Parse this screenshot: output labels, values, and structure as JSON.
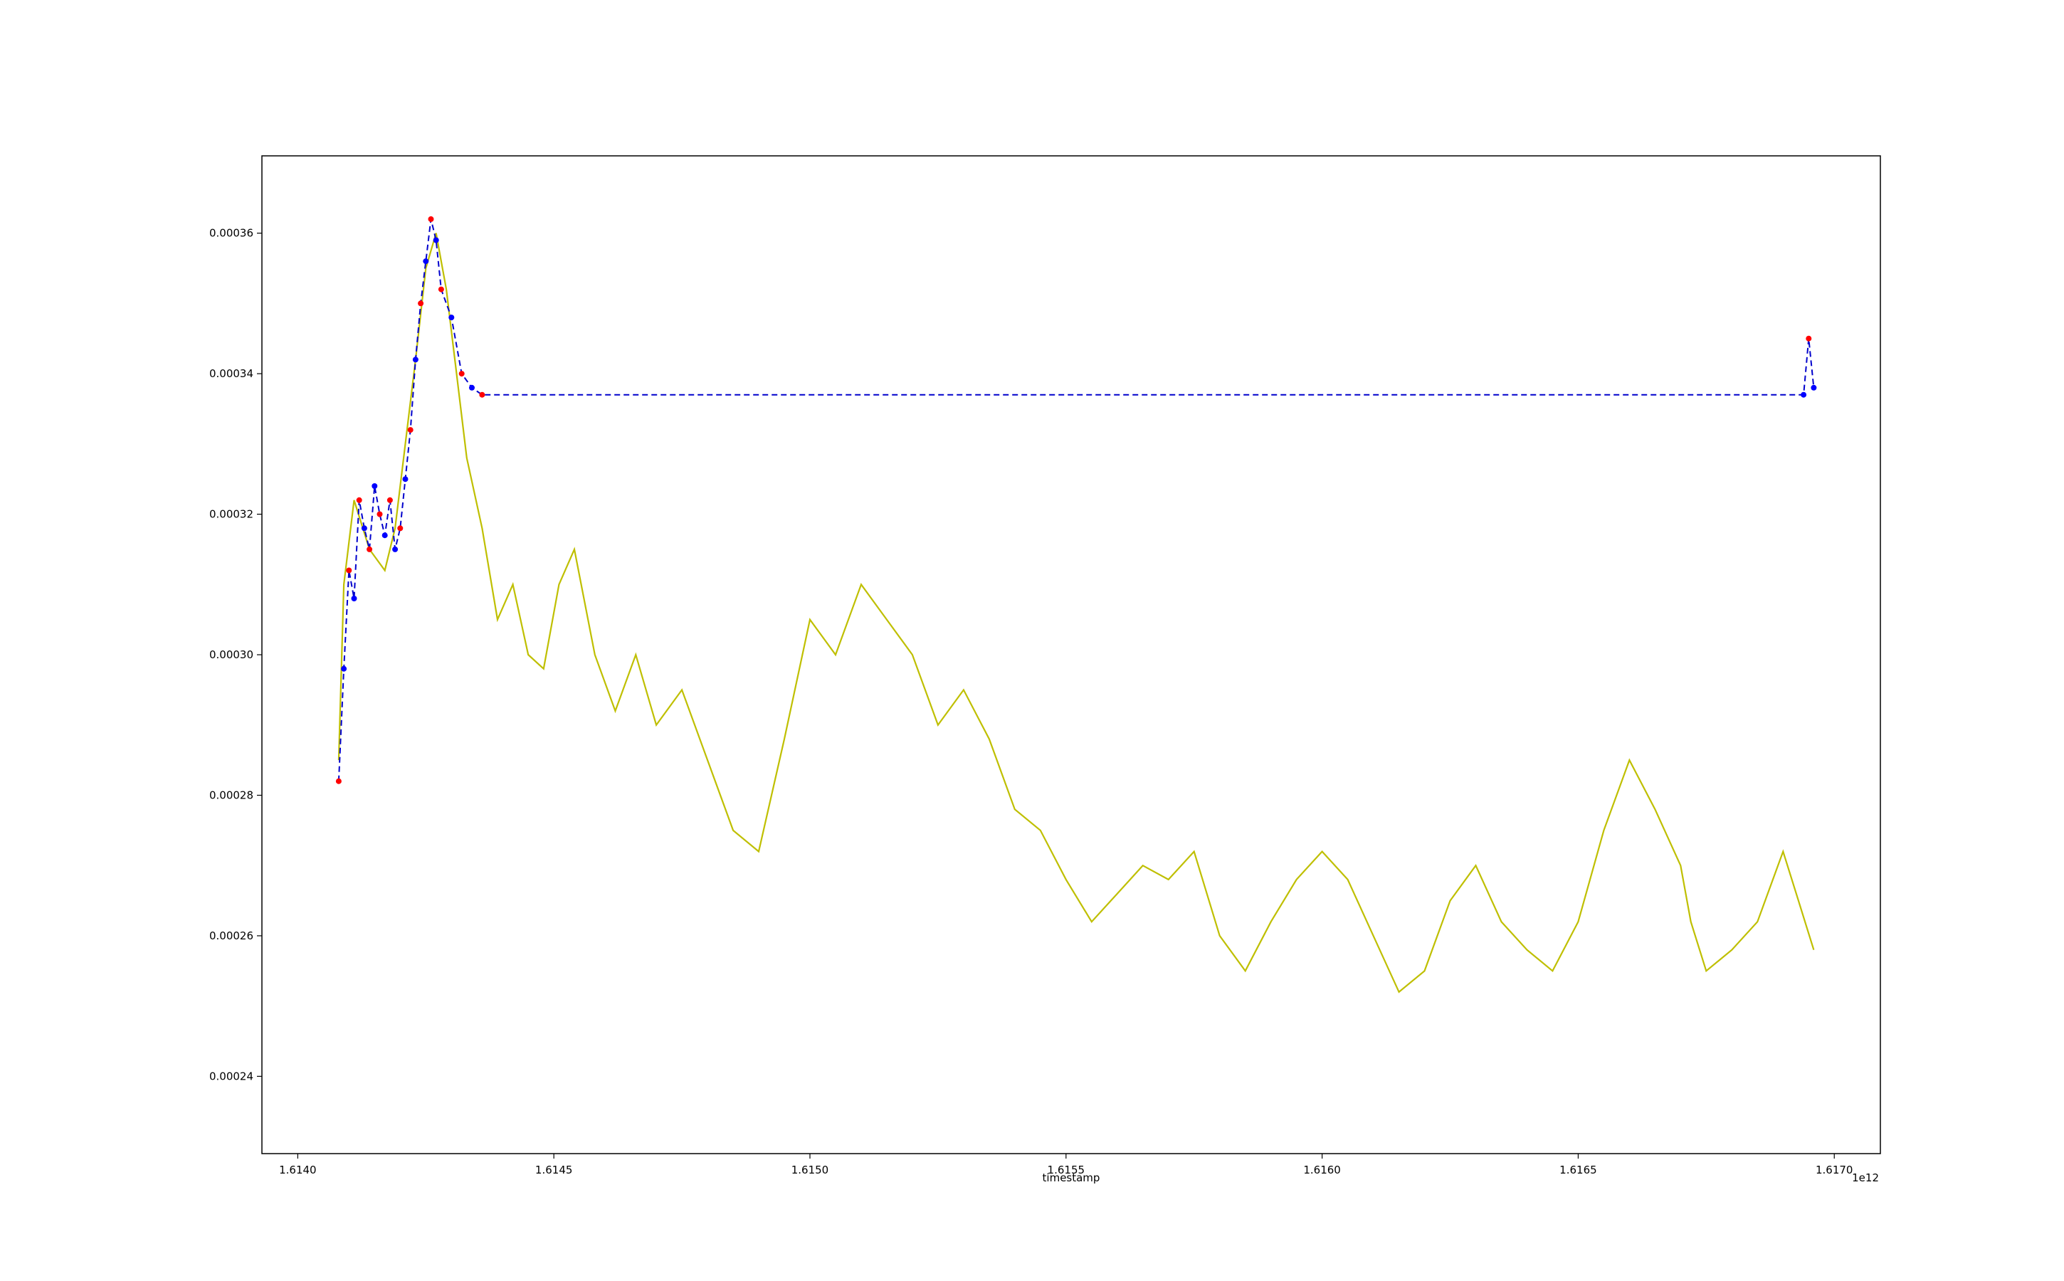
{
  "chart_data": {
    "type": "line",
    "title": "",
    "xlabel": "timestamp",
    "ylabel": "",
    "x_offset_label": "1e12",
    "xlim": [
      1613930000000.0,
      1617090000000.0
    ],
    "ylim": [
      0.000229,
      0.000371
    ],
    "x_ticks": [
      1614000000000.0,
      1614500000000.0,
      1615000000000.0,
      1615500000000.0,
      1616000000000.0,
      1616500000000.0,
      1617000000000.0
    ],
    "x_tick_labels": [
      "1.6140",
      "1.6145",
      "1.6150",
      "1.6155",
      "1.6160",
      "1.6165",
      "1.6170"
    ],
    "y_ticks": [
      0.00024,
      0.00026,
      0.00028,
      0.0003,
      0.00032,
      0.00034,
      0.00036
    ],
    "y_tick_labels": [
      "0.00024",
      "0.00026",
      "0.00028",
      "0.00030",
      "0.00032",
      "0.00034",
      "0.00036"
    ],
    "grid": false,
    "legend": "none",
    "series": [
      {
        "color": "#bfbf00",
        "style": "solid",
        "x": [
          1614080000000.0,
          1614090000000.0,
          1614110000000.0,
          1614140000000.0,
          1614170000000.0,
          1614190000000.0,
          1614210000000.0,
          1614230000000.0,
          1614250000000.0,
          1614270000000.0,
          1614290000000.0,
          1614310000000.0,
          1614330000000.0,
          1614360000000.0,
          1614390000000.0,
          1614420000000.0,
          1614450000000.0,
          1614480000000.0,
          1614510000000.0,
          1614540000000.0,
          1614580000000.0,
          1614620000000.0,
          1614660000000.0,
          1614700000000.0,
          1614750000000.0,
          1614800000000.0,
          1614850000000.0,
          1614900000000.0,
          1614950000000.0,
          1615000000000.0,
          1615050000000.0,
          1615100000000.0,
          1615150000000.0,
          1615200000000.0,
          1615250000000.0,
          1615300000000.0,
          1615350000000.0,
          1615400000000.0,
          1615450000000.0,
          1615500000000.0,
          1615550000000.0,
          1615600000000.0,
          1615650000000.0,
          1615700000000.0,
          1615750000000.0,
          1615800000000.0,
          1615850000000.0,
          1615900000000.0,
          1615950000000.0,
          1616000000000.0,
          1616050000000.0,
          1616100000000.0,
          1616150000000.0,
          1616200000000.0,
          1616250000000.0,
          1616300000000.0,
          1616350000000.0,
          1616400000000.0,
          1616450000000.0,
          1616500000000.0,
          1616550000000.0,
          1616600000000.0,
          1616650000000.0,
          1616700000000.0,
          1616720000000.0,
          1616750000000.0,
          1616800000000.0,
          1616850000000.0,
          1616900000000.0,
          1616930000000.0,
          1616960000000.0
        ],
        "y": [
          0.000285,
          0.00031,
          0.000322,
          0.000315,
          0.000312,
          0.000318,
          0.00033,
          0.000342,
          0.000355,
          0.00036,
          0.000352,
          0.00034,
          0.000328,
          0.000318,
          0.000305,
          0.00031,
          0.0003,
          0.000298,
          0.00031,
          0.000315,
          0.0003,
          0.000292,
          0.0003,
          0.00029,
          0.000295,
          0.000285,
          0.000275,
          0.000272,
          0.000288,
          0.000305,
          0.0003,
          0.00031,
          0.000305,
          0.0003,
          0.00029,
          0.000295,
          0.000288,
          0.000278,
          0.000275,
          0.000268,
          0.000262,
          0.000266,
          0.00027,
          0.000268,
          0.000272,
          0.00026,
          0.000255,
          0.000262,
          0.000268,
          0.000272,
          0.000268,
          0.00026,
          0.000252,
          0.000255,
          0.000265,
          0.00027,
          0.000262,
          0.000258,
          0.000255,
          0.000262,
          0.000275,
          0.000285,
          0.000278,
          0.00027,
          0.000262,
          0.000255,
          0.000258,
          0.000262,
          0.000272,
          0.000265,
          0.000258
        ]
      },
      {
        "color": "#0000cc",
        "style": "dashed",
        "markers": true,
        "marker_colors": [
          "#ff0000",
          "#0000ff"
        ],
        "x": [
          1614080000000.0,
          1614090000000.0,
          1614100000000.0,
          1614110000000.0,
          1614120000000.0,
          1614130000000.0,
          1614140000000.0,
          1614150000000.0,
          1614160000000.0,
          1614170000000.0,
          1614180000000.0,
          1614190000000.0,
          1614200000000.0,
          1614210000000.0,
          1614220000000.0,
          1614230000000.0,
          1614240000000.0,
          1614250000000.0,
          1614260000000.0,
          1614270000000.0,
          1614280000000.0,
          1614300000000.0,
          1614320000000.0,
          1614340000000.0,
          1614360000000.0,
          1616940000000.0,
          1616950000000.0,
          1616960000000.0
        ],
        "y": [
          0.000282,
          0.000298,
          0.000312,
          0.000308,
          0.000322,
          0.000318,
          0.000315,
          0.000324,
          0.00032,
          0.000317,
          0.000322,
          0.000315,
          0.000318,
          0.000325,
          0.000332,
          0.000342,
          0.00035,
          0.000356,
          0.000362,
          0.000359,
          0.000352,
          0.000348,
          0.00034,
          0.000338,
          0.000337,
          0.000337,
          0.000345,
          0.000338
        ]
      }
    ]
  }
}
